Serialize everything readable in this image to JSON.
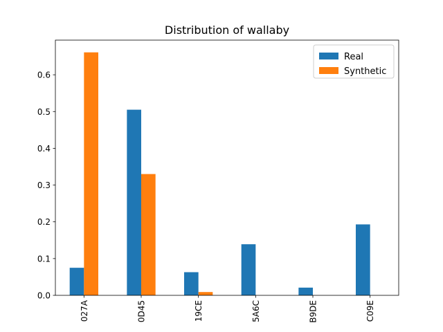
{
  "chart_data": {
    "type": "bar",
    "title": "Distribution of wallaby",
    "xlabel": "",
    "ylabel": "",
    "categories": [
      "027A",
      "0D45",
      "19CE",
      "5A6C",
      "B9DE",
      "C09E"
    ],
    "series": [
      {
        "name": "Real",
        "color": "#1f77b4",
        "values": [
          0.075,
          0.505,
          0.063,
          0.139,
          0.021,
          0.193
        ]
      },
      {
        "name": "Synthetic",
        "color": "#ff7f0e",
        "values": [
          0.661,
          0.33,
          0.009,
          0.0,
          0.0,
          0.0
        ]
      }
    ],
    "ylim": [
      0,
      0.6943
    ],
    "yticks": [
      0.0,
      0.1,
      0.2,
      0.3,
      0.4,
      0.5,
      0.6
    ],
    "ytick_labels": [
      "0.0",
      "0.1",
      "0.2",
      "0.3",
      "0.4",
      "0.5",
      "0.6"
    ],
    "x_tick_rotation": "vertical",
    "legend_position": "top-right",
    "grid": false
  }
}
